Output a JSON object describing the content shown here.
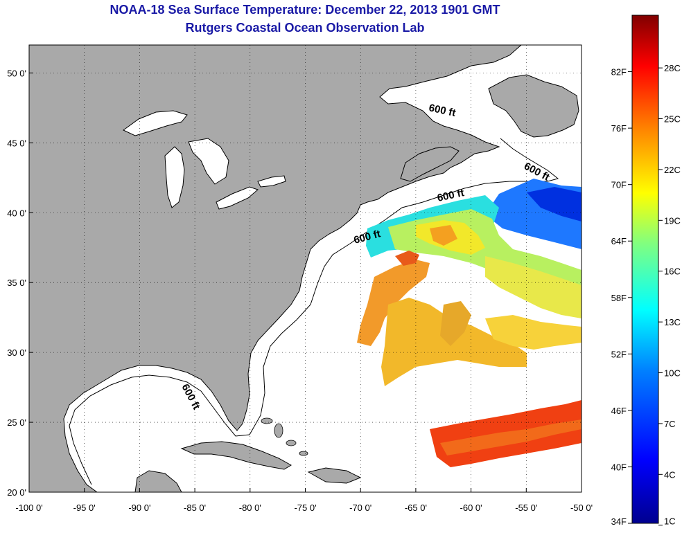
{
  "title": "NOAA-18 Sea Surface Temperature:  December 22, 2013 1901 GMT",
  "subtitle": "Rutgers Coastal Ocean Observation Lab",
  "map": {
    "lon_range": [
      -100,
      -50
    ],
    "lat_range": [
      20,
      52
    ],
    "lon_ticks": [
      {
        "value": -100,
        "label": "-100 0'"
      },
      {
        "value": -95,
        "label": "-95 0'"
      },
      {
        "value": -90,
        "label": "-90 0'"
      },
      {
        "value": -85,
        "label": "-85 0'"
      },
      {
        "value": -80,
        "label": "-80 0'"
      },
      {
        "value": -75,
        "label": "-75 0'"
      },
      {
        "value": -70,
        "label": "-70 0'"
      },
      {
        "value": -65,
        "label": "-65 0'"
      },
      {
        "value": -60,
        "label": "-60 0'"
      },
      {
        "value": -55,
        "label": "-55 0'"
      },
      {
        "value": -50,
        "label": "-50 0'"
      }
    ],
    "lat_ticks": [
      {
        "value": 20,
        "label": "20 0'"
      },
      {
        "value": 25,
        "label": "25 0'"
      },
      {
        "value": 30,
        "label": "30 0'"
      },
      {
        "value": 35,
        "label": "35 0'"
      },
      {
        "value": 40,
        "label": "40 0'"
      },
      {
        "value": 45,
        "label": "45 0'"
      },
      {
        "value": 50,
        "label": "50 0'"
      }
    ],
    "grid": "dotted",
    "isobath_label": "600 ft",
    "land_color": "#a9a9a9",
    "ocean_color": "#ffffff"
  },
  "colorbar": {
    "left_labels": [
      "82F",
      "76F",
      "70F",
      "64F",
      "58F",
      "52F",
      "46F",
      "40F",
      "34F"
    ],
    "right_labels": [
      "28C",
      "25C",
      "22C",
      "19C",
      "16C",
      "13C",
      "10C",
      "7C",
      "4C",
      "1C"
    ],
    "colors": [
      "#00008f",
      "#0000ff",
      "#0080ff",
      "#00ffff",
      "#80ff80",
      "#ffff00",
      "#ff8000",
      "#ff0000",
      "#800000"
    ]
  }
}
